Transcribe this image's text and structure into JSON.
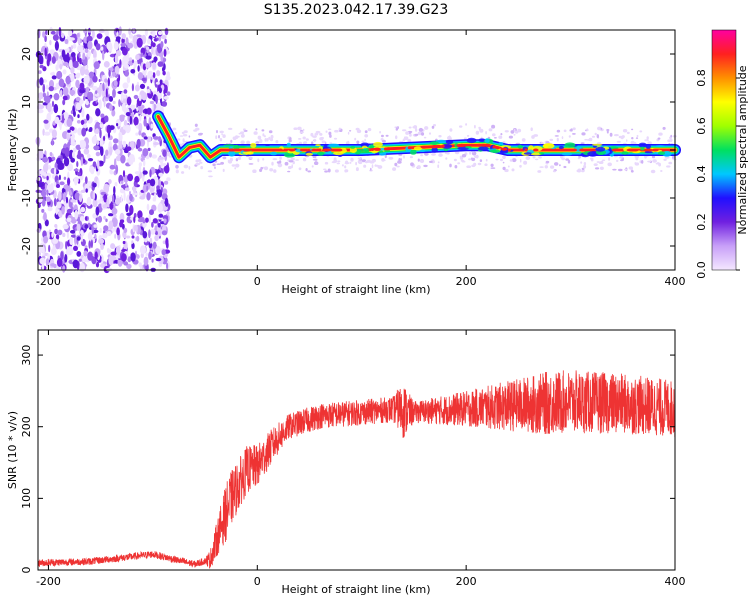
{
  "title": "S135.2023.042.17.39.G23",
  "chart_data": [
    {
      "type": "heatmap",
      "xlabel": "Height of straight line (km)",
      "ylabel": "Frequency (Hz)",
      "xlim": [
        -210,
        400
      ],
      "ylim": [
        -25,
        25
      ],
      "x_ticks": [
        -200,
        0,
        200,
        400
      ],
      "y_ticks": [
        -20,
        -10,
        0,
        10,
        20
      ],
      "colorbar": {
        "label": "Normalized spectral amplitude",
        "range": [
          0,
          1
        ],
        "ticks": [
          "0.0",
          "0.2",
          "0.4",
          "0.6",
          "0.8"
        ],
        "tick_values": [
          0,
          0.2,
          0.4,
          0.6,
          0.8
        ],
        "colors": [
          "#f4e8ff",
          "#c8a0f8",
          "#7020e0",
          "#2010ff",
          "#00c8ff",
          "#00e060",
          "#a0ff00",
          "#ffff00",
          "#ff9000",
          "#ff2020",
          "#ff00a0"
        ]
      },
      "noise_region_x": [
        -210,
        -85
      ],
      "ridge": [
        {
          "x": -95,
          "y": 7
        },
        {
          "x": -85,
          "y": 3
        },
        {
          "x": -75,
          "y": -1.5
        },
        {
          "x": -65,
          "y": 0.5
        },
        {
          "x": -55,
          "y": 1
        },
        {
          "x": -45,
          "y": -1.5
        },
        {
          "x": -35,
          "y": 0
        },
        {
          "x": -20,
          "y": 0
        },
        {
          "x": 0,
          "y": 0
        },
        {
          "x": 50,
          "y": 0
        },
        {
          "x": 100,
          "y": 0
        },
        {
          "x": 150,
          "y": 0.5
        },
        {
          "x": 200,
          "y": 1
        },
        {
          "x": 220,
          "y": 1
        },
        {
          "x": 240,
          "y": 0
        },
        {
          "x": 300,
          "y": 0
        },
        {
          "x": 350,
          "y": 0
        },
        {
          "x": 400,
          "y": 0
        }
      ]
    },
    {
      "type": "line",
      "xlabel": "Height of straight line (km)",
      "ylabel": "SNR (10 * v/v)",
      "xlim": [
        -210,
        400
      ],
      "ylim": [
        0,
        335
      ],
      "x_ticks": [
        -200,
        0,
        200,
        400
      ],
      "y_ticks": [
        0,
        100,
        200,
        300
      ],
      "series": [
        {
          "color": "#ee3333",
          "baseline": [
            {
              "x": -210,
              "y": 10
            },
            {
              "x": -160,
              "y": 12
            },
            {
              "x": -130,
              "y": 17
            },
            {
              "x": -100,
              "y": 22
            },
            {
              "x": -80,
              "y": 15
            },
            {
              "x": -60,
              "y": 8
            },
            {
              "x": -45,
              "y": 15
            },
            {
              "x": -35,
              "y": 60
            },
            {
              "x": -25,
              "y": 100
            },
            {
              "x": -10,
              "y": 140
            },
            {
              "x": 0,
              "y": 145
            },
            {
              "x": 15,
              "y": 175
            },
            {
              "x": 30,
              "y": 200
            },
            {
              "x": 60,
              "y": 215
            },
            {
              "x": 100,
              "y": 220
            },
            {
              "x": 135,
              "y": 225
            },
            {
              "x": 145,
              "y": 220
            },
            {
              "x": 200,
              "y": 225
            },
            {
              "x": 250,
              "y": 230
            },
            {
              "x": 300,
              "y": 235
            },
            {
              "x": 350,
              "y": 232
            },
            {
              "x": 400,
              "y": 225
            }
          ],
          "noise": [
            {
              "x": -210,
              "a": 5
            },
            {
              "x": -50,
              "a": 5
            },
            {
              "x": -30,
              "a": 40
            },
            {
              "x": 0,
              "a": 30
            },
            {
              "x": 30,
              "a": 18
            },
            {
              "x": 130,
              "a": 18
            },
            {
              "x": 140,
              "a": 40
            },
            {
              "x": 150,
              "a": 15
            },
            {
              "x": 200,
              "a": 25
            },
            {
              "x": 280,
              "a": 45
            },
            {
              "x": 400,
              "a": 40
            }
          ]
        }
      ]
    }
  ]
}
